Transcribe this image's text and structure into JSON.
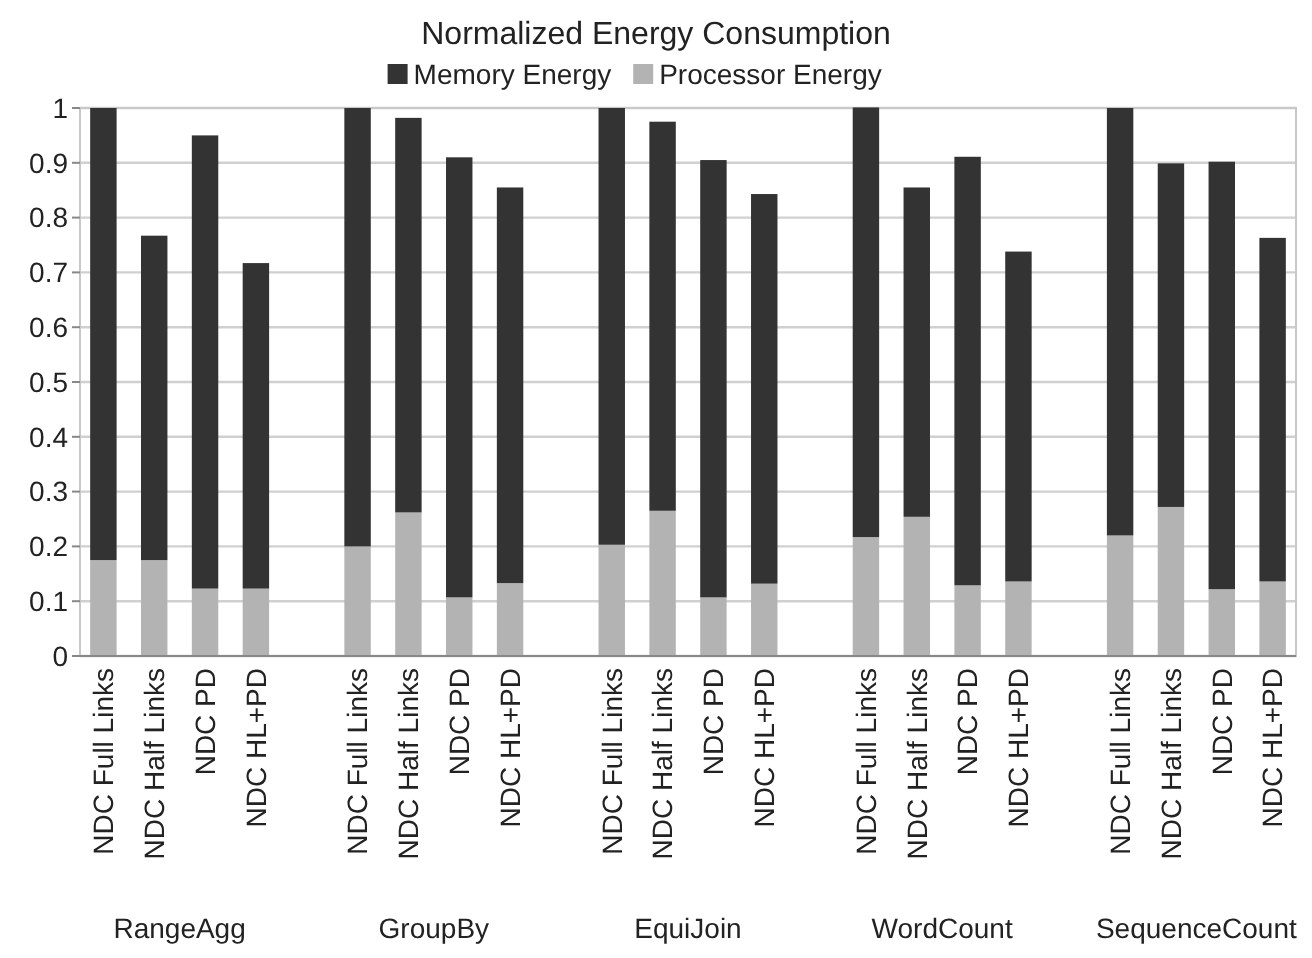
{
  "chart_data": {
    "type": "bar",
    "stacked": true,
    "title": "Normalized Energy Consumption",
    "categories": [
      "NDC Full Links",
      "NDC Half Links",
      "NDC PD",
      "NDC HL+PD",
      null,
      "NDC Full Links",
      "NDC Half Links",
      "NDC PD",
      "NDC HL+PD",
      null,
      "NDC Full Links",
      "NDC Half Links",
      "NDC PD",
      "NDC HL+PD",
      null,
      "NDC Full Links",
      "NDC Half Links",
      "NDC PD",
      "NDC HL+PD",
      null,
      "NDC Full Links",
      "NDC Half Links",
      "NDC PD",
      "NDC HL+PD"
    ],
    "series": [
      {
        "name": "Processor Energy",
        "color": "#b3b3b3",
        "values": [
          0.175,
          0.175,
          0.123,
          0.123,
          null,
          0.2,
          0.262,
          0.107,
          0.133,
          null,
          0.203,
          0.265,
          0.107,
          0.132,
          null,
          0.217,
          0.254,
          0.129,
          0.136,
          null,
          0.22,
          0.272,
          0.122,
          0.136
        ]
      },
      {
        "name": "Memory Energy",
        "color": "#333333",
        "values": [
          0.825,
          0.592,
          0.827,
          0.594,
          null,
          0.8,
          0.72,
          0.803,
          0.722,
          null,
          0.797,
          0.71,
          0.798,
          0.711,
          null,
          0.784,
          0.601,
          0.782,
          0.602,
          null,
          0.78,
          0.627,
          0.78,
          0.627
        ]
      }
    ],
    "ylim": [
      0,
      1
    ],
    "yticks": [
      0,
      0.1,
      0.2,
      0.3,
      0.4,
      0.5,
      0.6,
      0.7,
      0.8,
      0.9,
      1
    ],
    "grid": "y",
    "legend": "top",
    "annotations": [
      "RangeAgg",
      "GroupBy",
      "EquiJoin",
      "WordCount",
      "SequenceCount"
    ]
  }
}
